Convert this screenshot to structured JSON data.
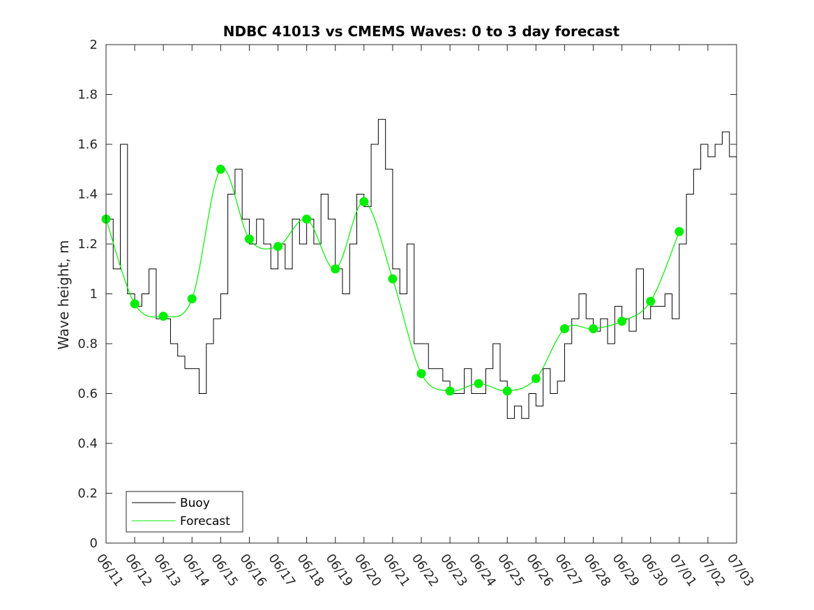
{
  "chart_data": {
    "type": "line",
    "title": "NDBC 41013 vs CMEMS Waves: 0 to 3 day forecast",
    "xlabel": "",
    "ylabel": "Wave height, m",
    "xlim": [
      "06/11",
      "07/03"
    ],
    "ylim": [
      0,
      2
    ],
    "y_ticks": [
      0,
      0.2,
      0.4,
      0.6,
      0.8,
      1,
      1.2,
      1.4,
      1.6,
      1.8,
      2
    ],
    "x_ticks": [
      "06/11",
      "06/12",
      "06/13",
      "06/14",
      "06/15",
      "06/16",
      "06/17",
      "06/18",
      "06/19",
      "06/20",
      "06/21",
      "06/22",
      "06/23",
      "06/24",
      "06/25",
      "06/26",
      "06/27",
      "06/28",
      "06/29",
      "06/30",
      "07/01",
      "07/02",
      "07/03"
    ],
    "grid": false,
    "legend": {
      "position": "bottom-left",
      "entries": [
        "Buoy",
        "Forecast"
      ]
    },
    "colors": {
      "buoy": "#000000",
      "forecast": "#00ee00"
    },
    "series": [
      {
        "name": "Buoy",
        "x": [
          "06/11",
          "06/11 06:00",
          "06/11 12:00",
          "06/11 18:00",
          "06/12",
          "06/12 06:00",
          "06/12 12:00",
          "06/12 18:00",
          "06/13",
          "06/13 06:00",
          "06/13 12:00",
          "06/13 18:00",
          "06/14",
          "06/14 06:00",
          "06/14 12:00",
          "06/14 18:00",
          "06/15",
          "06/15 06:00",
          "06/15 12:00",
          "06/15 18:00",
          "06/16",
          "06/16 06:00",
          "06/16 12:00",
          "06/16 18:00",
          "06/17",
          "06/17 06:00",
          "06/17 12:00",
          "06/17 18:00",
          "06/18",
          "06/18 06:00",
          "06/18 12:00",
          "06/18 18:00",
          "06/19",
          "06/19 06:00",
          "06/19 12:00",
          "06/19 18:00",
          "06/20",
          "06/20 06:00",
          "06/20 12:00",
          "06/20 18:00",
          "06/21",
          "06/21 06:00",
          "06/21 12:00",
          "06/21 18:00",
          "06/22",
          "06/22 06:00",
          "06/22 12:00",
          "06/22 18:00",
          "06/23",
          "06/23 06:00",
          "06/23 12:00",
          "06/23 18:00",
          "06/24",
          "06/24 06:00",
          "06/24 12:00",
          "06/24 18:00",
          "06/25",
          "06/25 06:00",
          "06/25 12:00",
          "06/25 18:00",
          "06/26",
          "06/26 06:00",
          "06/26 12:00",
          "06/26 18:00",
          "06/27",
          "06/27 06:00",
          "06/27 12:00",
          "06/27 18:00",
          "06/28",
          "06/28 06:00",
          "06/28 12:00",
          "06/28 18:00",
          "06/29",
          "06/29 06:00",
          "06/29 12:00",
          "06/29 18:00",
          "06/30",
          "06/30 06:00",
          "06/30 12:00",
          "06/30 18:00",
          "07/01",
          "07/01 06:00",
          "07/01 12:00",
          "07/01 18:00",
          "07/02",
          "07/02 06:00",
          "07/02 12:00",
          "07/02 18:00",
          "07/03"
        ],
        "y": [
          1.3,
          1.1,
          1.6,
          1.0,
          0.95,
          1.0,
          1.1,
          0.9,
          0.9,
          0.8,
          0.75,
          0.7,
          0.7,
          0.6,
          0.8,
          0.9,
          1.0,
          1.4,
          1.5,
          1.3,
          1.2,
          1.3,
          1.2,
          1.1,
          1.2,
          1.1,
          1.3,
          1.2,
          1.3,
          1.2,
          1.4,
          1.3,
          1.1,
          1.0,
          1.2,
          1.4,
          1.35,
          1.6,
          1.7,
          1.5,
          1.1,
          1.0,
          1.2,
          0.8,
          0.8,
          0.7,
          0.7,
          0.65,
          0.6,
          0.6,
          0.7,
          0.6,
          0.6,
          0.7,
          0.8,
          0.65,
          0.5,
          0.55,
          0.5,
          0.6,
          0.55,
          0.7,
          0.6,
          0.65,
          0.8,
          0.9,
          1.0,
          0.9,
          0.85,
          0.9,
          0.8,
          0.95,
          0.9,
          0.85,
          1.1,
          0.9,
          0.95,
          0.95,
          1.0,
          0.9,
          1.2,
          1.4,
          1.5,
          1.6,
          1.55,
          1.6,
          1.65,
          1.55,
          1.6
        ]
      },
      {
        "name": "Forecast",
        "x": [
          "06/11",
          "06/12",
          "06/13",
          "06/14",
          "06/15",
          "06/16",
          "06/17",
          "06/18",
          "06/19",
          "06/20",
          "06/21",
          "06/22",
          "06/23",
          "06/24",
          "06/25",
          "06/26",
          "06/27",
          "06/28",
          "06/29",
          "06/30",
          "07/01"
        ],
        "y": [
          1.3,
          0.96,
          0.91,
          0.98,
          1.5,
          1.22,
          1.19,
          1.3,
          1.1,
          1.37,
          1.06,
          0.68,
          0.61,
          0.64,
          0.61,
          0.66,
          0.86,
          0.86,
          0.89,
          0.97,
          1.25
        ]
      }
    ]
  }
}
